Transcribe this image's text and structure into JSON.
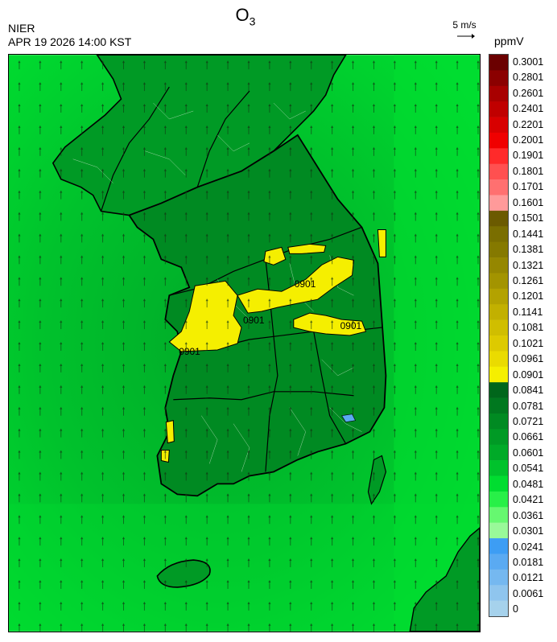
{
  "header": {
    "title_main": "O",
    "title_sub": "3",
    "organization": "NIER",
    "datetime": "APR 19 2026 14:00 KST",
    "wind_reference": "5 m/s",
    "unit": "ppmV"
  },
  "contour_labels": [
    "0901",
    "0901",
    "0901",
    "0901"
  ],
  "legend": {
    "labels": [
      "0.3001",
      "0.2801",
      "0.2601",
      "0.2401",
      "0.2201",
      "0.2001",
      "0.1901",
      "0.1801",
      "0.1701",
      "0.1601",
      "0.1501",
      "0.1441",
      "0.1381",
      "0.1321",
      "0.1261",
      "0.1201",
      "0.1141",
      "0.1081",
      "0.1021",
      "0.0961",
      "0.0901",
      "0.0841",
      "0.0781",
      "0.0721",
      "0.0661",
      "0.0601",
      "0.0541",
      "0.0481",
      "0.0421",
      "0.0361",
      "0.0301",
      "0.0241",
      "0.0181",
      "0.0121",
      "0.0061",
      "0"
    ],
    "colors": [
      "#6b0000",
      "#8b0000",
      "#a80000",
      "#c00000",
      "#d80000",
      "#f00000",
      "#ff2a2a",
      "#ff5050",
      "#ff7070",
      "#ff9a9a",
      "#6b5a00",
      "#7a6e00",
      "#857900",
      "#958700",
      "#a39400",
      "#b3a200",
      "#c2b000",
      "#d0be00",
      "#ddca00",
      "#eadb00",
      "#f5ef00",
      "#00661b",
      "#00781f",
      "#008a22",
      "#009a25",
      "#00aa28",
      "#00c22c",
      "#00dd30",
      "#28f048",
      "#66f870",
      "#99f999",
      "#3d9df4",
      "#5aaaf2",
      "#75b8f0",
      "#8fc5ee",
      "#a6d2ec"
    ],
    "colors_note": ""
  }
}
